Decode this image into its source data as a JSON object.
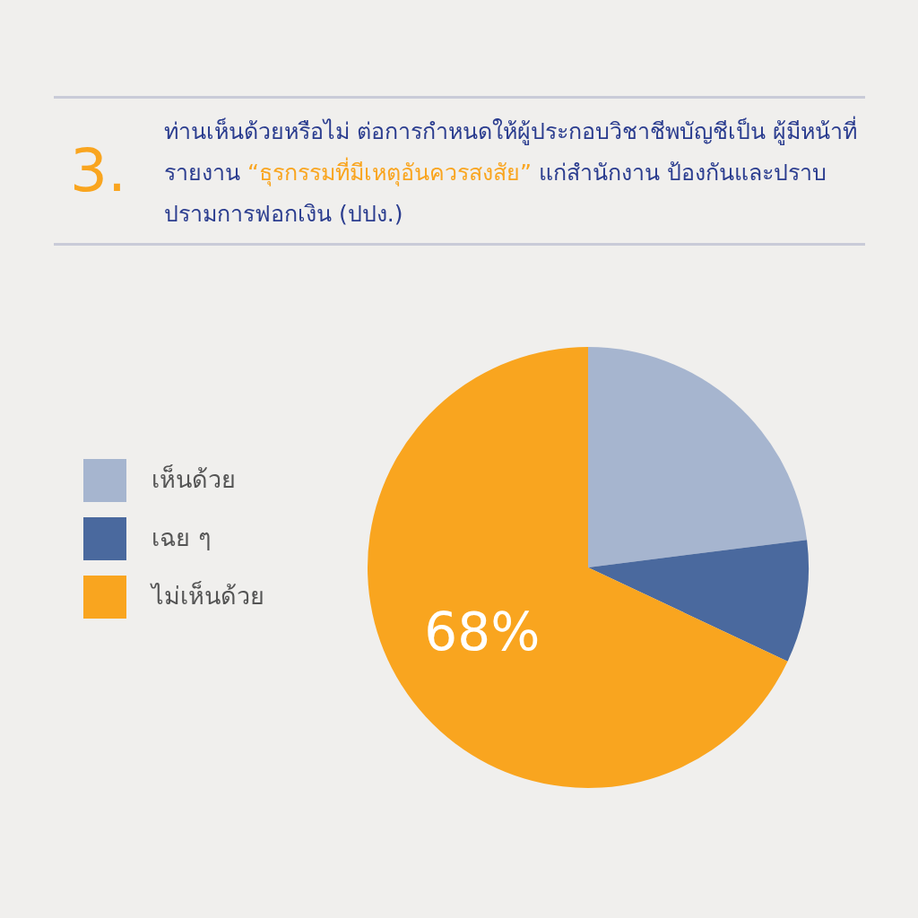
{
  "chart_data": {
    "type": "pie",
    "title": "ท่านเห็นด้วยหรือไม่ ต่อการกำหนดให้ผู้ประกอบวิชาชีพบัญชีเป็น ผู้มีหน้าที่รายงาน “ธุรกรรมที่มีเหตุอันควรสงสัย” แก่สำนักงาน ป้องกันและปราบปรามการฟอกเงิน (ปปง.)",
    "annotations": [
      "3."
    ],
    "categories": [
      "เห็นด้วย",
      "เฉย ๆ",
      "ไม่เห็นด้วย"
    ],
    "values": [
      23,
      9,
      68
    ],
    "colors": [
      "#a6b5cf",
      "#4a699e",
      "#f9a51f"
    ],
    "value_labels": [
      null,
      null,
      "68%"
    ],
    "legend": "left"
  }
}
